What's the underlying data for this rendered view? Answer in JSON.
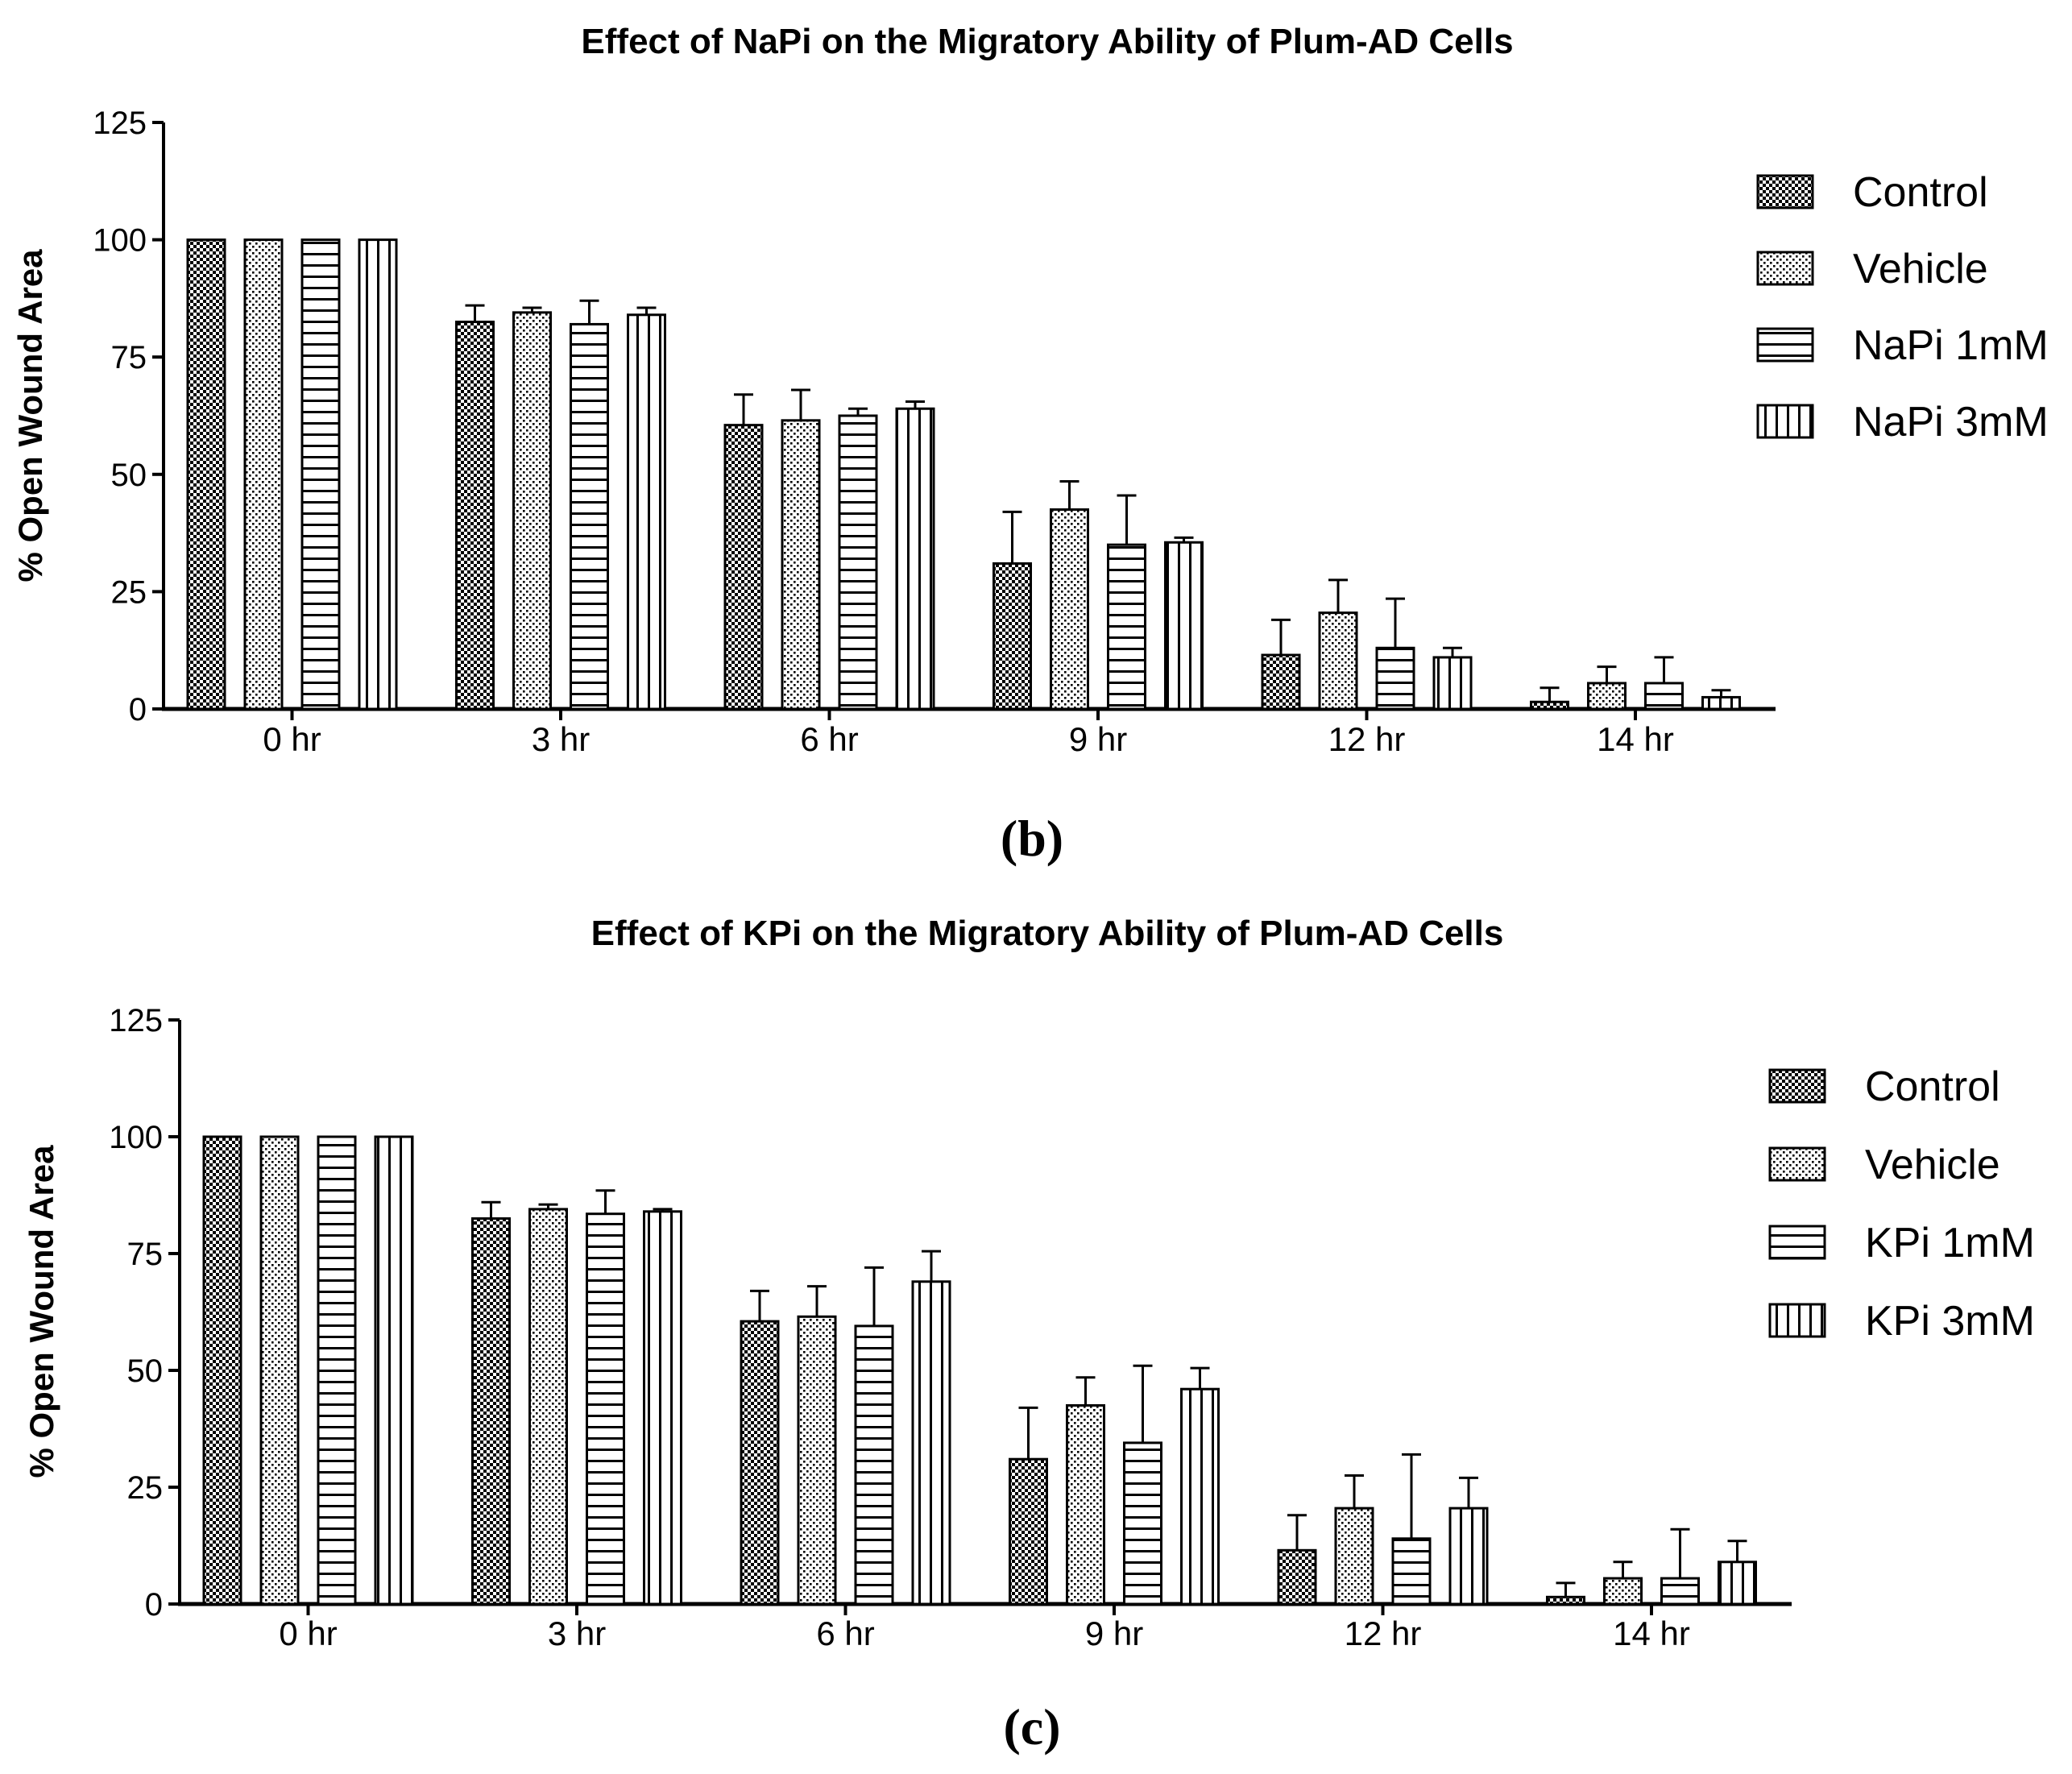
{
  "chart_data": [
    {
      "type": "bar",
      "panel_label": "(b)",
      "title": "Effect of NaPi on the Migratory Ability of Plum-AD Cells",
      "xlabel": "",
      "ylabel": "% Open Wound Area",
      "ylim": [
        0,
        125
      ],
      "yticks": [
        0,
        25,
        50,
        75,
        100,
        125
      ],
      "categories": [
        "0 hr",
        "3 hr",
        "6 hr",
        "9 hr",
        "12 hr",
        "14 hr"
      ],
      "legend_position": "right",
      "series": [
        {
          "name": "Control",
          "pattern": "checker",
          "values": [
            100,
            82.5,
            60.5,
            31,
            11.5,
            1.5
          ],
          "errors": [
            0,
            3.5,
            6.5,
            11,
            7.5,
            3
          ]
        },
        {
          "name": "Vehicle",
          "pattern": "dots",
          "values": [
            100,
            84.5,
            61.5,
            42.5,
            20.5,
            5.5
          ],
          "errors": [
            0,
            1,
            6.5,
            6,
            7,
            3.5
          ]
        },
        {
          "name": "NaPi 1mM",
          "pattern": "hlines",
          "values": [
            100,
            82,
            62.5,
            35,
            13,
            5.5
          ],
          "errors": [
            0,
            5,
            1.5,
            10.5,
            10.5,
            5.5
          ]
        },
        {
          "name": "NaPi 3mM",
          "pattern": "vlines",
          "values": [
            100,
            84,
            64,
            35.5,
            11,
            2.5
          ],
          "errors": [
            0,
            1.5,
            1.5,
            1,
            2,
            1.5
          ]
        }
      ]
    },
    {
      "type": "bar",
      "panel_label": "(c)",
      "title": "Effect of KPi on the Migratory Ability of Plum-AD Cells",
      "xlabel": "",
      "ylabel": "% Open Wound Area",
      "ylim": [
        0,
        125
      ],
      "yticks": [
        0,
        25,
        50,
        75,
        100,
        125
      ],
      "categories": [
        "0 hr",
        "3 hr",
        "6 hr",
        "9 hr",
        "12 hr",
        "14 hr"
      ],
      "legend_position": "right",
      "series": [
        {
          "name": "Control",
          "pattern": "checker",
          "values": [
            100,
            82.5,
            60.5,
            31,
            11.5,
            1.5
          ],
          "errors": [
            0,
            3.5,
            6.5,
            11,
            7.5,
            3
          ]
        },
        {
          "name": "Vehicle",
          "pattern": "dots",
          "values": [
            100,
            84.5,
            61.5,
            42.5,
            20.5,
            5.5
          ],
          "errors": [
            0,
            1,
            6.5,
            6,
            7,
            3.5
          ]
        },
        {
          "name": "KPi 1mM",
          "pattern": "hlines",
          "values": [
            100,
            83.5,
            59.5,
            34.5,
            14,
            5.5
          ],
          "errors": [
            0,
            5,
            12.5,
            16.5,
            18,
            10.5
          ]
        },
        {
          "name": "KPi 3mM",
          "pattern": "vlines",
          "values": [
            100,
            84,
            69,
            46,
            20.5,
            9
          ],
          "errors": [
            0,
            0.5,
            6.5,
            4.5,
            6.5,
            4.5
          ]
        }
      ]
    }
  ]
}
